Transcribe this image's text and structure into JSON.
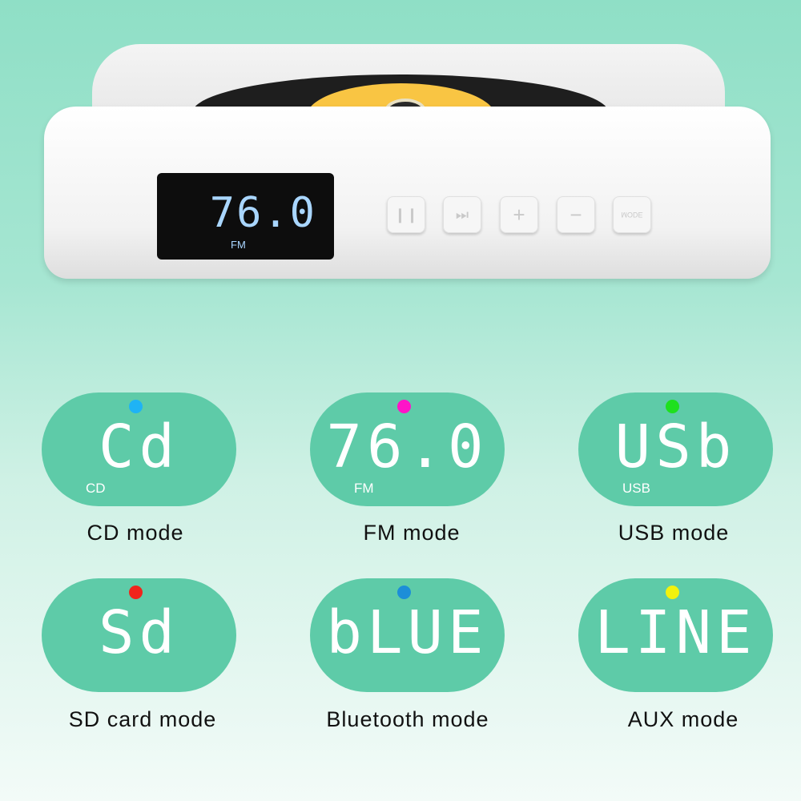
{
  "device": {
    "display_value": "76.0",
    "display_mode": "FM",
    "buttons": [
      {
        "icon": "play-pause-icon",
        "glyph": "❙❙"
      },
      {
        "icon": "next-icon",
        "glyph": "⏭"
      },
      {
        "icon": "plus-icon",
        "glyph": "+"
      },
      {
        "icon": "minus-icon",
        "glyph": "−"
      },
      {
        "icon": "mode-icon",
        "glyph": "MODE"
      }
    ]
  },
  "modes": [
    {
      "segment": "Cd",
      "sub": "CD",
      "caption": "CD mode",
      "dot_color": "#1fb3f5"
    },
    {
      "segment": "76.0",
      "sub": "FM",
      "caption": "FM mode",
      "dot_color": "#ff14c8"
    },
    {
      "segment": "USb",
      "sub": "USB",
      "caption": "USB mode",
      "dot_color": "#1ee01e"
    },
    {
      "segment": "Sd",
      "sub": "",
      "caption": "SD card mode",
      "dot_color": "#f0241c"
    },
    {
      "segment": "bLUE",
      "sub": "",
      "caption": "Bluetooth mode",
      "dot_color": "#1c8ed8"
    },
    {
      "segment": "LINE",
      "sub": "",
      "caption": "AUX mode",
      "dot_color": "#f2f20e"
    }
  ],
  "colors": {
    "pill": "#5ecba8",
    "lcd_text": "#a9d6ff",
    "cd_label": "#f9c543"
  }
}
